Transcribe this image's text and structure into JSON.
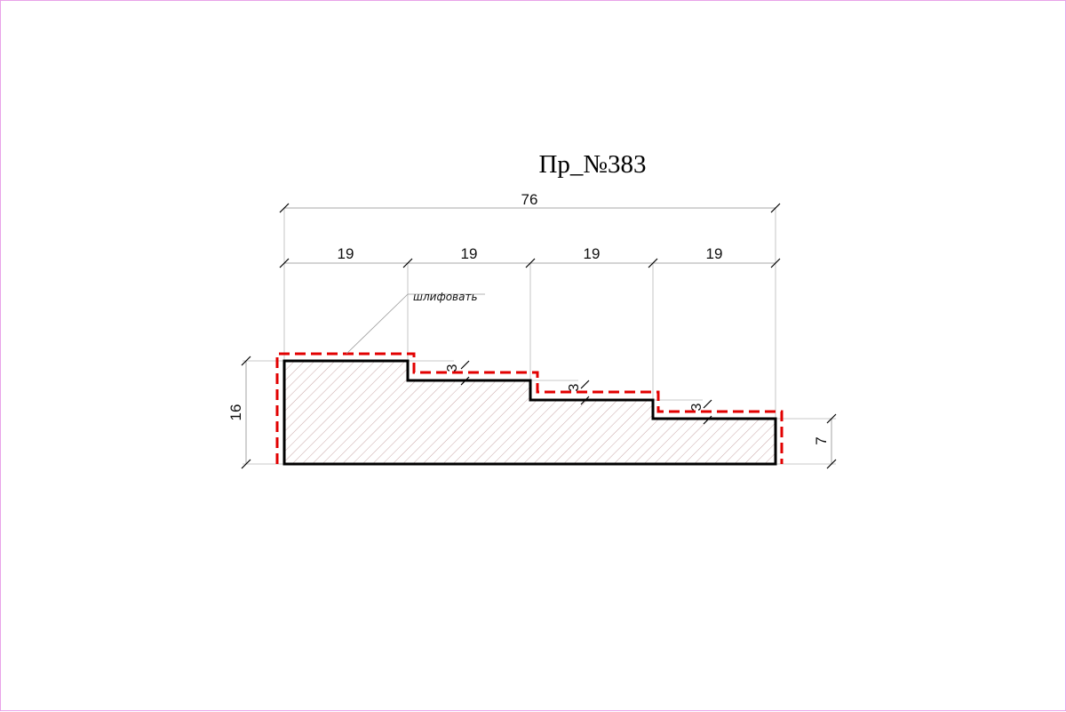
{
  "title": "Пр_№383",
  "dimensions": {
    "overall_width": "76",
    "segments": [
      "19",
      "19",
      "19",
      "19"
    ],
    "height": "16",
    "end_height": "7",
    "step_depths": [
      "3",
      "3",
      "3"
    ]
  },
  "note": "шлифовать",
  "colors": {
    "sanding_outline": "#e20000",
    "profile_outline": "#000000",
    "hatch": "#c9a7a7",
    "border": "#e9a3e9"
  }
}
